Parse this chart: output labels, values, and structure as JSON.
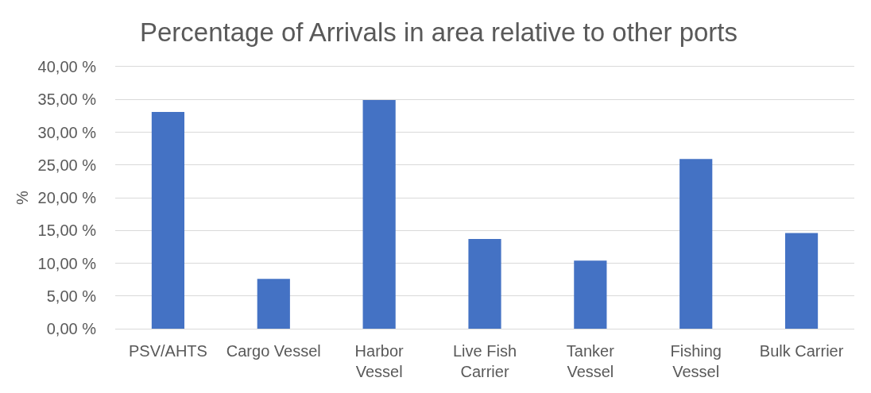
{
  "chart_data": {
    "type": "bar",
    "title": "Percentage of Arrivals in area relative to other ports",
    "ylabel": "%",
    "categories": [
      "PSV/AHTS",
      "Cargo Vessel",
      "Harbor Vessel",
      "Live Fish Carrier",
      "Tanker Vessel",
      "Fishing Vessel",
      "Bulk Carrier"
    ],
    "values": [
      33.1,
      7.6,
      34.9,
      13.7,
      10.4,
      25.9,
      14.6
    ],
    "color": "#4472c4",
    "ylim": [
      0,
      40
    ],
    "yticks": [
      {
        "value": 0,
        "label": "0,00 %"
      },
      {
        "value": 5,
        "label": "5,00 %"
      },
      {
        "value": 10,
        "label": "10,00 %"
      },
      {
        "value": 15,
        "label": "15,00 %"
      },
      {
        "value": 20,
        "label": "20,00 %"
      },
      {
        "value": 25,
        "label": "25,00 %"
      },
      {
        "value": 30,
        "label": "30,00 %"
      },
      {
        "value": 35,
        "label": "35,00 %"
      },
      {
        "value": 40,
        "label": "40,00 %"
      }
    ],
    "grid": "y"
  }
}
